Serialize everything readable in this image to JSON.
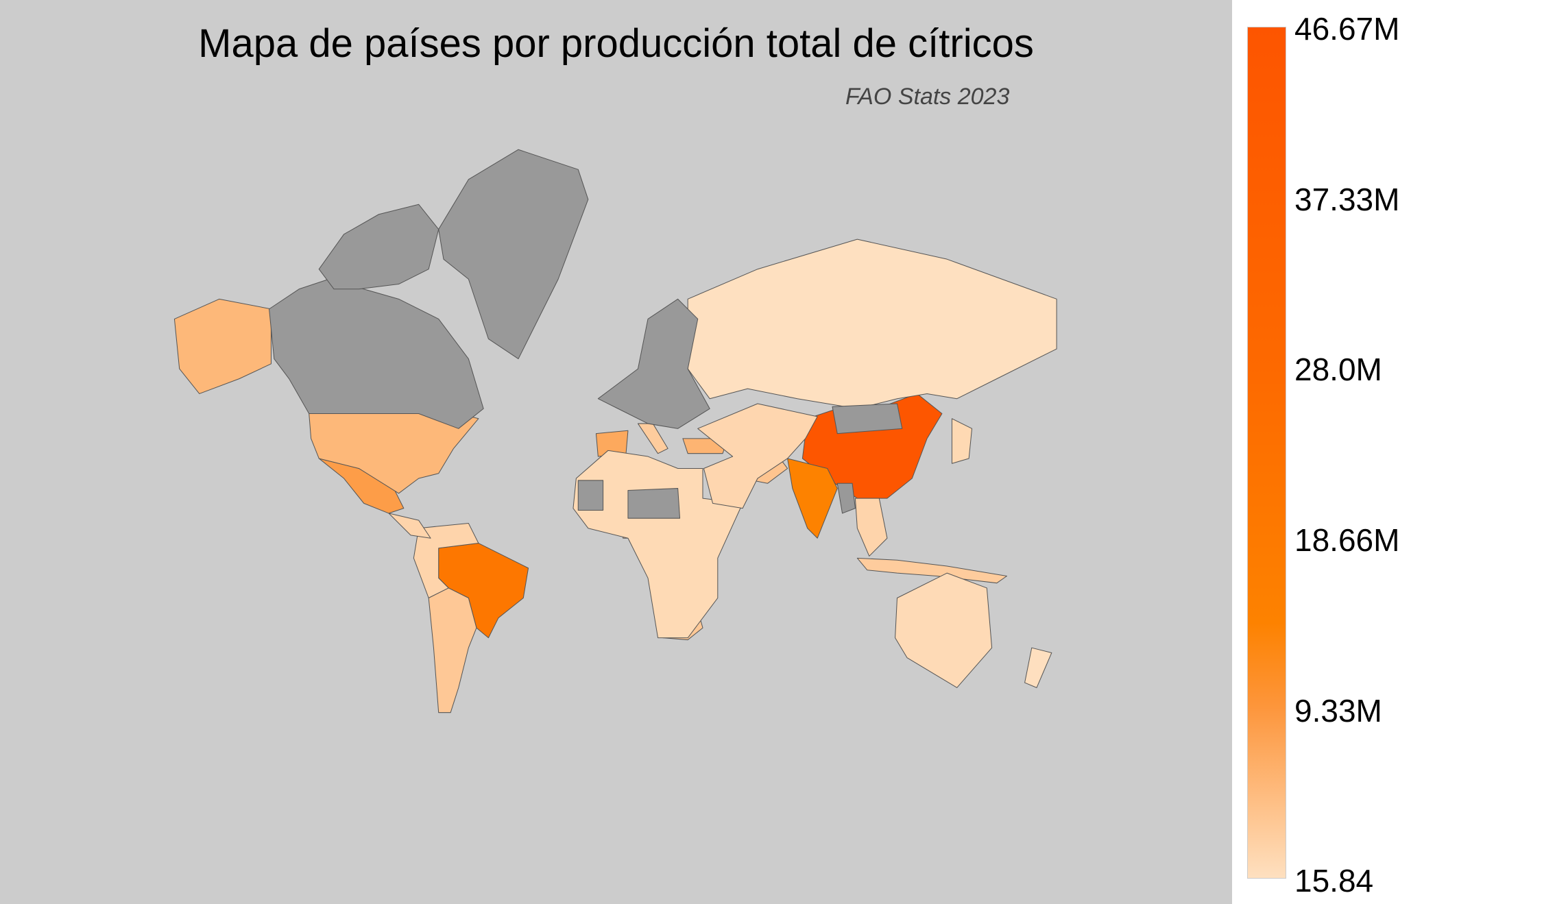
{
  "title": "Mapa de países por producción total de cítricos",
  "subtitle": "FAO Stats 2023",
  "colors": {
    "background": "#cccccc",
    "no_data": "#999999",
    "scale_low": "#fee0c0",
    "scale_mid": "#fd8200",
    "scale_high": "#fd5500"
  },
  "chart_data": {
    "type": "choropleth",
    "title": "Mapa de países por producción total de cítricos",
    "subtitle": "FAO Stats 2023",
    "colorbar": {
      "min": 15.84,
      "max": 46670000,
      "ticks": [
        {
          "value": 46670000,
          "label": "46.67M"
        },
        {
          "value": 37330000,
          "label": "37.33M"
        },
        {
          "value": 28000000,
          "label": "28.0M"
        },
        {
          "value": 18660000,
          "label": "18.66M"
        },
        {
          "value": 9330000,
          "label": "9.33M"
        },
        {
          "value": 15.84,
          "label": "15.84"
        }
      ],
      "placement": "right"
    },
    "regions": [
      {
        "id": "china",
        "value": 46000000
      },
      {
        "id": "brazil",
        "value": 20000000
      },
      {
        "id": "india",
        "value": 14000000
      },
      {
        "id": "mexico",
        "value": 8500000
      },
      {
        "id": "spain",
        "value": 7000000
      },
      {
        "id": "turkey",
        "value": 5500000
      },
      {
        "id": "usa",
        "value": 5000000
      },
      {
        "id": "egypt",
        "value": 4500000
      },
      {
        "id": "south-africa",
        "value": 3000000
      },
      {
        "id": "nigeria",
        "value": 4000000
      },
      {
        "id": "iran",
        "value": 3500000
      },
      {
        "id": "alaska",
        "value": 5000000
      },
      {
        "id": "indonesia",
        "value": 2500000
      },
      {
        "id": "russia",
        "value": 1000
      },
      {
        "id": "south-america-rest",
        "value": 1500000
      },
      {
        "id": "argentina",
        "value": 3000000
      },
      {
        "id": "africa-rest",
        "value": 800000
      },
      {
        "id": "middle-east",
        "value": 1200000
      },
      {
        "id": "se-asia",
        "value": 1500000
      },
      {
        "id": "japan",
        "value": 900000
      },
      {
        "id": "australia",
        "value": 700000
      },
      {
        "id": "new-zealand",
        "value": 100000
      },
      {
        "id": "central-america",
        "value": 1500000
      },
      {
        "id": "italy",
        "value": 2500000
      },
      {
        "id": "canada",
        "value": null
      },
      {
        "id": "greenland",
        "value": null
      },
      {
        "id": "arctic-islands",
        "value": null
      },
      {
        "id": "europe-north",
        "value": null
      },
      {
        "id": "mongolia",
        "value": null
      },
      {
        "id": "mauritania",
        "value": null
      },
      {
        "id": "niger-chad",
        "value": null
      },
      {
        "id": "myanmar",
        "value": null
      }
    ]
  }
}
